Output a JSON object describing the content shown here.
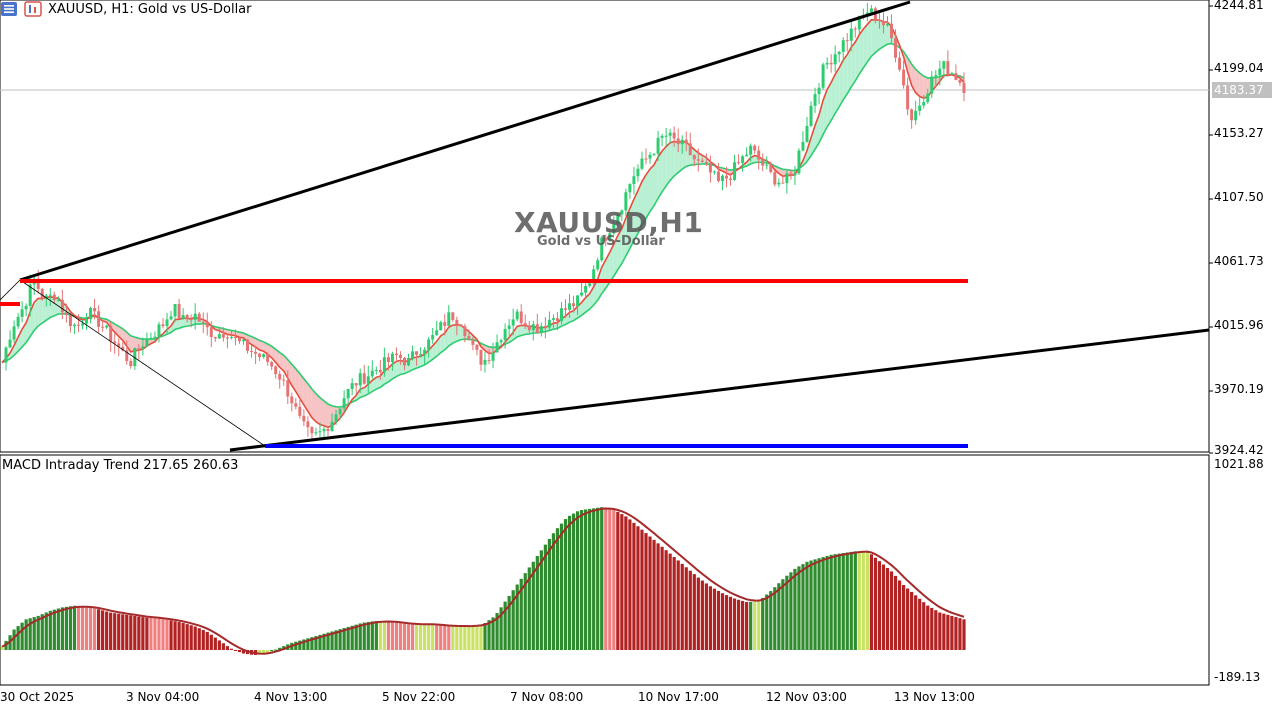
{
  "header": {
    "symbol_label": "XAUUSD, H1:  Gold vs US-Dollar"
  },
  "watermark": {
    "title": "XAUUSD,H1",
    "subtitle": "Gold vs US-Dollar"
  },
  "price_axis": {
    "ticks": [
      "4244.81",
      "4199.04",
      "4153.27",
      "4107.50",
      "4061.73",
      "4015.96",
      "3970.19",
      "3924.42"
    ],
    "current_price": "4183.37"
  },
  "indicator": {
    "label": "MACD Intraday Trend  217.65 260.63",
    "max_label": "1021.88",
    "min_label": "-189.13"
  },
  "time_axis": {
    "labels": [
      "30 Oct 2025",
      "3 Nov 04:00",
      "4 Nov 13:00",
      "5 Nov 22:00",
      "7 Nov 08:00",
      "10 Nov 17:00",
      "12 Nov 03:00",
      "13 Nov 13:00"
    ]
  },
  "colors": {
    "bull": "#2ecc71",
    "bear": "#e57373",
    "support_line": "#0000ff",
    "resistance_line": "#ff0000",
    "trend_line": "#000000"
  },
  "chart_data": {
    "type": "candlestick",
    "symbol": "XAUUSD",
    "timeframe": "H1",
    "ylim": [
      3924.42,
      4244.81
    ],
    "horizontal_levels": [
      4045,
      3927
    ],
    "close_path": [
      3985,
      4012,
      4025,
      4045,
      4030,
      4035,
      4018,
      4010,
      4022,
      4015,
      4005,
      3995,
      3985,
      3998,
      4005,
      4012,
      4025,
      4015,
      4020,
      4010,
      4005,
      4008,
      4000,
      3995,
      3990,
      3985,
      3975,
      3960,
      3940,
      3930,
      3935,
      3945,
      3960,
      3970,
      3975,
      3980,
      3985,
      3990,
      3985,
      3995,
      4000,
      4010,
      4020,
      4015,
      3995,
      3985,
      3995,
      4010,
      4020,
      4015,
      4010,
      4015,
      4020,
      4025,
      4030,
      4045,
      4070,
      4085,
      4100,
      4120,
      4130,
      4140,
      4150,
      4145,
      4140,
      4130,
      4125,
      4115,
      4120,
      4130,
      4140,
      4130,
      4120,
      4115,
      4120,
      4150,
      4180,
      4200,
      4210,
      4220,
      4230,
      4240,
      4235,
      4225,
      4200,
      4160,
      4175,
      4190,
      4200,
      4195,
      4185
    ],
    "macd_path": [
      20,
      120,
      180,
      200,
      230,
      250,
      260,
      255,
      240,
      220,
      210,
      200,
      190,
      185,
      175,
      160,
      140,
      110,
      60,
      10,
      -20,
      -30,
      -20,
      10,
      40,
      60,
      80,
      100,
      120,
      140,
      160,
      170,
      170,
      160,
      150,
      150,
      150,
      140,
      140,
      140,
      150,
      200,
      300,
      400,
      500,
      600,
      700,
      780,
      820,
      830,
      840,
      820,
      780,
      720,
      660,
      600,
      540,
      480,
      420,
      370,
      330,
      300,
      280,
      290,
      350,
      420,
      480,
      520,
      540,
      560,
      570,
      580,
      580,
      520,
      460,
      380,
      320,
      260,
      220,
      200,
      180
    ]
  }
}
